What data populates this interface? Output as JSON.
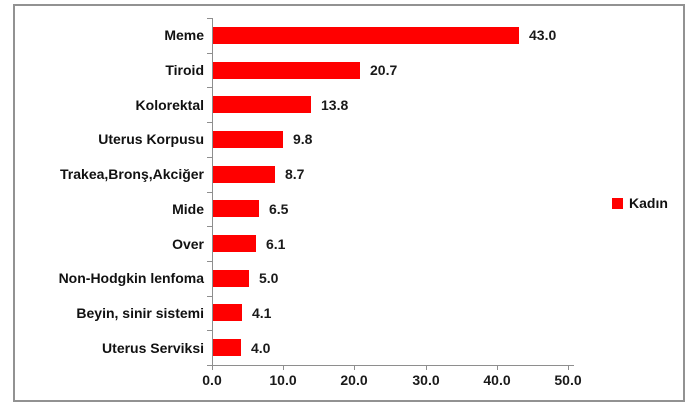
{
  "chart_data": {
    "type": "bar",
    "orientation": "horizontal",
    "title": "",
    "xlabel": "",
    "ylabel": "",
    "grid": false,
    "categories": [
      "Meme",
      "Tiroid",
      "Kolorektal",
      "Uterus Korpusu",
      "Trakea,Bronş,Akciğer",
      "Mide",
      "Over",
      "Non-Hodgkin lenfoma",
      "Beyin, sinir sistemi",
      "Uterus Serviksi"
    ],
    "series": [
      {
        "name": "Kadın",
        "color": "#ff0000",
        "values": [
          43.0,
          20.7,
          13.8,
          9.8,
          8.7,
          6.5,
          6.1,
          5.0,
          4.1,
          4.0
        ]
      }
    ],
    "value_labels": [
      "43.0",
      "20.7",
      "13.8",
      "9.8",
      "8.7",
      "6.5",
      "6.1",
      "5.0",
      "4.1",
      "4.0"
    ],
    "x_axis": {
      "min": 0,
      "max": 50,
      "tick_step": 10,
      "ticks": [
        "0.0",
        "10.0",
        "20.0",
        "30.0",
        "40.0",
        "50.0"
      ]
    },
    "legend": {
      "position": "right",
      "entries": [
        {
          "label": "Kadın",
          "color": "#ff0000"
        }
      ]
    }
  },
  "colors": {
    "bar": "#ff0000",
    "axis": "#8e8e8e",
    "frame_border": "#929292",
    "text": "#111111",
    "background": "#ffffff"
  }
}
